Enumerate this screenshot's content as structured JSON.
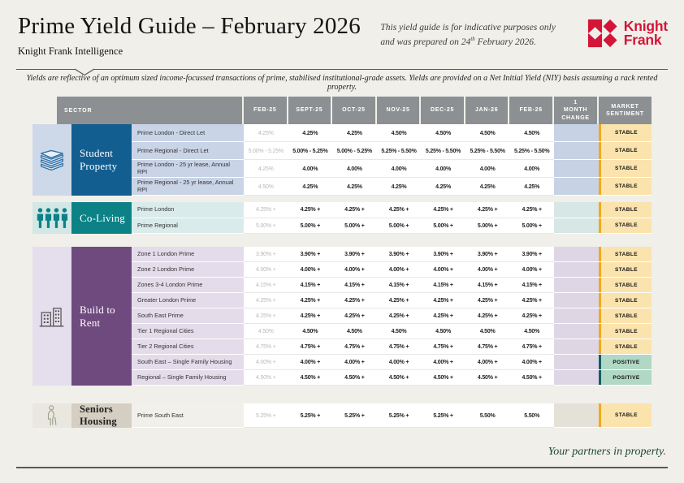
{
  "page": {
    "title": "Prime Yield Guide – February 2026",
    "subtitle": "Knight Frank Intelligence",
    "disclaimer_line1": "This yield guide is for indicative purposes only",
    "disclaimer_line2_prefix": "and was prepared on 24",
    "disclaimer_sup": "th",
    "disclaimer_line2_suffix": " February 2026.",
    "note": "Yields are reflective of an optimum sized income-focussed transactions of prime, stabilised institutional-grade assets. Yields are provided on a Net Initial Yield (NIY) basis assuming a rack rented property.",
    "logo_line1": "Knight",
    "logo_line2": "Frank",
    "footer": "Your partners in property",
    "footer_period": "."
  },
  "colors": {
    "brand_red": "#d41538",
    "page_bg": "#f0efea",
    "header_bg": "#8c9093",
    "footer_green": "#20462f",
    "muted_value": "#b9b9b9"
  },
  "sentiment_styles": {
    "STABLE": {
      "bg": "#fbe3ae",
      "border": "#f2a91e"
    },
    "POSITIVE": {
      "bg": "#b0d8c5",
      "border": "#175d62"
    }
  },
  "table": {
    "sector_header": "SECTOR",
    "month_headers": [
      "FEB-25",
      "SEPT-25",
      "OCT-25",
      "NOV-25",
      "DEC-25",
      "JAN-26",
      "FEB-26"
    ],
    "change_header": "1\nMONTH\nCHANGE",
    "sentiment_header": "MARKET\nSENTIMENT",
    "groups": [
      {
        "sector": "Student Property",
        "icon": "books-icon",
        "colors": {
          "label_bg": "#135e90",
          "label_text": "#ffffff",
          "icon_bg": "#cdd9e9",
          "sublabel_bg": "#c9d4e6",
          "change_bg": "#c7d3e4"
        },
        "rows": [
          {
            "label": "Prime London - Direct Let",
            "values": [
              "4.25%",
              "4.25%",
              "4.25%",
              "4.50%",
              "4.50%",
              "4.50%",
              "4.50%"
            ],
            "sentiment": "STABLE"
          },
          {
            "label": "Prime Regional - Direct Let",
            "values": [
              "5.00% - 5.25%",
              "5.00% - 5.25%",
              "5.00% - 5.25%",
              "5.25% - 5.50%",
              "5.25% - 5.50%",
              "5.25% - 5.50%",
              "5.25% - 5.50%"
            ],
            "sentiment": "STABLE"
          },
          {
            "label": "Prime London - 25 yr lease, Annual RPI",
            "values": [
              "4.25%",
              "4.00%",
              "4.00%",
              "4.00%",
              "4.00%",
              "4.00%",
              "4.00%"
            ],
            "sentiment": "STABLE"
          },
          {
            "label": "Prime Regional - 25 yr lease, Annual RPI",
            "values": [
              "4.50%",
              "4.25%",
              "4.25%",
              "4.25%",
              "4.25%",
              "4.25%",
              "4.25%"
            ],
            "sentiment": "STABLE"
          }
        ]
      },
      {
        "sector": "Co-Living",
        "icon": "people-icon",
        "colors": {
          "label_bg": "#0c8287",
          "label_text": "#ffffff",
          "icon_bg": "#d2e7e6",
          "sublabel_bg": "#d9ebea",
          "change_bg": "#d7e7e6"
        },
        "rows": [
          {
            "label": "Prime London",
            "values": [
              "4.25% +",
              "4.25% +",
              "4.25% +",
              "4.25% +",
              "4.25% +",
              "4.25% +",
              "4.25% +"
            ],
            "sentiment": "STABLE"
          },
          {
            "label": "Prime Regional",
            "values": [
              "5.00% +",
              "5.00% +",
              "5.00% +",
              "5.00% +",
              "5.00% +",
              "5.00% +",
              "5.00% +"
            ],
            "sentiment": "STABLE"
          }
        ]
      },
      {
        "sector": "Build to Rent",
        "icon": "buildings-icon",
        "colors": {
          "label_bg": "#6f4a7e",
          "label_text": "#ffffff",
          "icon_bg": "#e5deec",
          "sublabel_bg": "#e4dcea",
          "change_bg": "#ded6e5"
        },
        "rows": [
          {
            "label": "Zone 1 London Prime",
            "values": [
              "3.90% +",
              "3.90% +",
              "3.90% +",
              "3.90% +",
              "3.90% +",
              "3.90% +",
              "3.90% +"
            ],
            "sentiment": "STABLE"
          },
          {
            "label": "Zone 2 London Prime",
            "values": [
              "4.00% +",
              "4.00% +",
              "4.00% +",
              "4.00% +",
              "4.00% +",
              "4.00% +",
              "4.00% +"
            ],
            "sentiment": "STABLE"
          },
          {
            "label": "Zones 3-4 London Prime",
            "values": [
              "4.15% +",
              "4.15% +",
              "4.15% +",
              "4.15% +",
              "4.15% +",
              "4.15% +",
              "4.15% +"
            ],
            "sentiment": "STABLE"
          },
          {
            "label": "Greater London Prime",
            "values": [
              "4.25% +",
              "4.25% +",
              "4.25% +",
              "4.25% +",
              "4.25% +",
              "4.25% +",
              "4.25% +"
            ],
            "sentiment": "STABLE"
          },
          {
            "label": "South East Prime",
            "values": [
              "4.25% +",
              "4.25% +",
              "4.25% +",
              "4.25% +",
              "4.25% +",
              "4.25% +",
              "4.25% +"
            ],
            "sentiment": "STABLE"
          },
          {
            "label": "Tier 1 Regional Cities",
            "values": [
              "4.50%",
              "4.50%",
              "4.50%",
              "4.50%",
              "4.50%",
              "4.50%",
              "4.50%"
            ],
            "sentiment": "STABLE"
          },
          {
            "label": "Tier 2 Regional Cities",
            "values": [
              "4.75% +",
              "4.75% +",
              "4.75% +",
              "4.75% +",
              "4.75% +",
              "4.75% +",
              "4.75% +"
            ],
            "sentiment": "STABLE"
          },
          {
            "label": "South East – Single Family Housing",
            "values": [
              "4.00% +",
              "4.00% +",
              "4.00% +",
              "4.00% +",
              "4.00% +",
              "4.00% +",
              "4.00% +"
            ],
            "sentiment": "POSITIVE"
          },
          {
            "label": "Regional – Single Family Housing",
            "values": [
              "4.50% +",
              "4.50% +",
              "4.50% +",
              "4.50% +",
              "4.50% +",
              "4.50% +",
              "4.50% +"
            ],
            "sentiment": "POSITIVE"
          }
        ]
      },
      {
        "sector": "Seniors Housing",
        "icon": "person-cane-icon",
        "colors": {
          "label_bg": "#d5cec2",
          "label_text": "#222222",
          "icon_bg": "#e9e7df",
          "sublabel_bg": "#f1f0ea",
          "change_bg": "#e4e1d8"
        },
        "rows": [
          {
            "label": "Prime South East",
            "values": [
              "5.25% +",
              "5.25% +",
              "5.25% +",
              "5.25% +",
              "5.25% +",
              "5.50%",
              "5.50%"
            ],
            "sentiment": "STABLE"
          }
        ]
      }
    ]
  }
}
